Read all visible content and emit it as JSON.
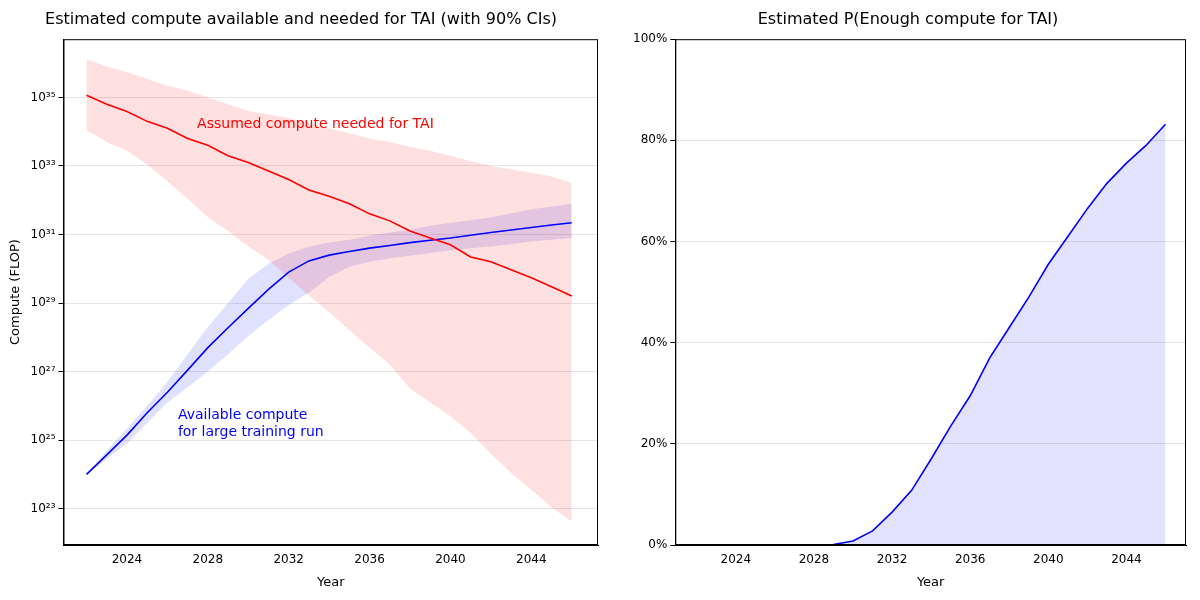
{
  "chart_data": [
    {
      "type": "line",
      "title": "Estimated compute available and needed for TAI (with 90% CIs)",
      "x_label": "Year",
      "y_label": "Compute (FLOP)",
      "log": "y",
      "grid": "y",
      "x": [
        2022,
        2023,
        2024,
        2025,
        2026,
        2027,
        2028,
        2029,
        2030,
        2031,
        2032,
        2033,
        2034,
        2035,
        2036,
        2037,
        2038,
        2039,
        2040,
        2041,
        2042,
        2043,
        2044,
        2045,
        2046
      ],
      "xlim": [
        2020.86,
        2047.3
      ],
      "xticks": [
        2024,
        2028,
        2032,
        2036,
        2040,
        2044
      ],
      "ylim": [
        8.7e+21,
        5e+36
      ],
      "yticks": [
        {
          "value": 1e+23,
          "label": "10²³"
        },
        {
          "value": 1e+25,
          "label": "10²⁵"
        },
        {
          "value": 1e+27,
          "label": "10²⁷"
        },
        {
          "value": 1e+29,
          "label": "10²⁹"
        },
        {
          "value": 1e+31,
          "label": "10³¹"
        },
        {
          "value": 1e+33,
          "label": "10³³"
        },
        {
          "value": 1e+35,
          "label": "10³⁵"
        }
      ],
      "series": [
        {
          "name": "Assumed compute needed for TAI",
          "color": "#ff0000",
          "values": [
            1.15e+35,
            6.3e+34,
            3.9e+34,
            2e+34,
            1.26e+34,
            6.3e+33,
            4e+33,
            2e+33,
            1.26e+33,
            7.1e+32,
            4e+32,
            2e+32,
            1.3e+32,
            7.9e+31,
            4e+31,
            2.5e+31,
            1.26e+31,
            7.9e+30,
            5e+30,
            2.2e+30,
            1.6e+30,
            9.3e+29,
            5.5e+29,
            3e+29,
            1.6e+29
          ],
          "lower": [
            1.1e+34,
            5e+33,
            2.8e+33,
            1.1e+33,
            3.6e+32,
            1.1e+32,
            3.2e+31,
            1.26e+31,
            4.5e+30,
            1.8e+30,
            5.5e+29,
            1.7e+29,
            5.5e+28,
            1.6e+28,
            5e+27,
            1.6e+27,
            3.2e+26,
            1.26e+26,
            5e+25,
            1.6e+25,
            4e+24,
            1.1e+24,
            3.6e+23,
            1.1e+23,
            4.2e+22
          ],
          "upper": [
            1.3e+36,
            8e+35,
            5.5e+35,
            3.5e+35,
            2.2e+35,
            1.6e+35,
            1e+35,
            6.3e+34,
            4e+34,
            3.2e+34,
            2.5e+34,
            1.8e+34,
            1.26e+34,
            9e+33,
            6.3e+33,
            5e+33,
            3.6e+33,
            2.8e+33,
            2e+33,
            1.4e+33,
            1e+33,
            8e+32,
            6.3e+32,
            5e+32,
            3.2e+32
          ]
        },
        {
          "name": "Available compute\nfor large training run",
          "color": "#0000ff",
          "values": [
            1e+24,
            3.7e+24,
            1.4e+25,
            6.3e+25,
            2.5e+26,
            1.1e+27,
            5e+27,
            1.9e+28,
            7e+28,
            2.5e+29,
            8e+29,
            1.7e+30,
            2.5e+30,
            3.2e+30,
            4e+30,
            4.8e+30,
            5.8e+30,
            6.8e+30,
            7.9e+30,
            9.5e+30,
            1.15e+31,
            1.35e+31,
            1.6e+31,
            1.9e+31,
            2.2e+31
          ],
          "lower": [
            1e+24,
            2.8e+24,
            8e+24,
            3.2e+25,
            1.26e+26,
            3.5e+26,
            1e+27,
            3.2e+27,
            1.1e+28,
            3.2e+28,
            8.7e+28,
            2e+29,
            5.8e+29,
            1.15e+30,
            1.6e+30,
            2e+30,
            2.4e+30,
            2.9e+30,
            3.4e+30,
            4e+30,
            4.5e+30,
            5.2e+30,
            6.3e+30,
            7e+30,
            7.9e+30
          ],
          "upper": [
            1e+24,
            5e+24,
            2.2e+25,
            1e+26,
            5e+26,
            3.2e+27,
            2e+28,
            1e+29,
            5e+29,
            1.4e+30,
            2.8e+30,
            4.5e+30,
            5.8e+30,
            7e+30,
            9.3e+30,
            1.15e+31,
            1.4e+31,
            1.8e+31,
            2.2e+31,
            2.6e+31,
            3.2e+31,
            4.2e+31,
            5.5e+31,
            6.6e+31,
            7.9e+31
          ]
        }
      ]
    },
    {
      "type": "area",
      "title": "Estimated P(Enough compute for TAI)",
      "x_label": "Year",
      "grid": "y",
      "color": "#0000ff",
      "x": [
        2022,
        2023,
        2024,
        2025,
        2026,
        2027,
        2028,
        2029,
        2030,
        2031,
        2032,
        2033,
        2034,
        2035,
        2036,
        2037,
        2038,
        2039,
        2040,
        2041,
        2042,
        2043,
        2044,
        2045,
        2046
      ],
      "values": [
        0,
        0,
        0,
        0,
        0,
        0,
        0,
        0.1,
        0.8,
        2.8,
        6.5,
        10.8,
        17,
        23.5,
        29.5,
        37,
        43,
        49,
        55.5,
        61,
        66.5,
        71.5,
        75.5,
        79,
        83.2
      ],
      "xlim": [
        2020.9,
        2047.05
      ],
      "xticks": [
        2024,
        2028,
        2032,
        2036,
        2040,
        2044
      ],
      "ylim": [
        0,
        100
      ],
      "yticks": [
        {
          "value": 0,
          "label": "0%"
        },
        {
          "value": 20,
          "label": "20%"
        },
        {
          "value": 40,
          "label": "40%"
        },
        {
          "value": 60,
          "label": "60%"
        },
        {
          "value": 80,
          "label": "80%"
        },
        {
          "value": 100,
          "label": "100%"
        }
      ]
    }
  ]
}
